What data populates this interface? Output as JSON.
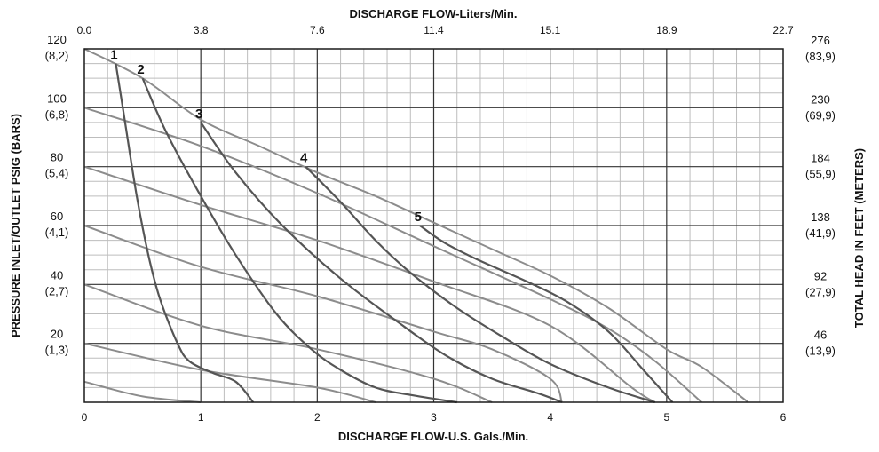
{
  "chart_data": {
    "type": "line",
    "title": "",
    "x_label_bottom": "DISCHARGE FLOW-U.S. Gals./Min.",
    "x_label_top": "DISCHARGE FLOW-Liters/Min.",
    "y_label_left": "PRESSURE INLET/OUTLET PSIG (BARS)",
    "y_label_right": "TOTAL HEAD IN FEET (METERS)",
    "xlim": [
      0,
      6
    ],
    "ylim": [
      0,
      120
    ],
    "grid": true,
    "bottom_ticks": [
      "0",
      "1",
      "2",
      "3",
      "4",
      "5",
      "6"
    ],
    "top_ticks": [
      "0.0",
      "3.8",
      "7.6",
      "11.4",
      "15.1",
      "18.9",
      "22.7"
    ],
    "left_ticks": [
      {
        "value": 120,
        "psi": "120",
        "bar": "(8,2)"
      },
      {
        "value": 100,
        "psi": "100",
        "bar": "(6,8)"
      },
      {
        "value": 80,
        "psi": "80",
        "bar": "(5,4)"
      },
      {
        "value": 60,
        "psi": "60",
        "bar": "(4,1)"
      },
      {
        "value": 40,
        "psi": "40",
        "bar": "(2,7)"
      },
      {
        "value": 20,
        "psi": "20",
        "bar": "(1,3)"
      }
    ],
    "right_ticks": [
      {
        "value": 120,
        "feet": "276",
        "meters": "(83,9)"
      },
      {
        "value": 100,
        "feet": "230",
        "meters": "(69,9)"
      },
      {
        "value": 80,
        "feet": "184",
        "meters": "(55,9)"
      },
      {
        "value": 60,
        "feet": "138",
        "meters": "(41,9)"
      },
      {
        "value": 40,
        "feet": "92",
        "meters": "(27,9)"
      },
      {
        "value": 20,
        "feet": "46",
        "meters": "(13,9)"
      }
    ],
    "performance_curves": [
      {
        "label": "1",
        "points": [
          [
            0.27,
            115
          ],
          [
            0.35,
            95
          ],
          [
            0.45,
            70
          ],
          [
            0.55,
            50
          ],
          [
            0.65,
            35
          ],
          [
            0.8,
            20
          ],
          [
            0.9,
            14
          ],
          [
            1.1,
            10
          ],
          [
            1.3,
            7
          ],
          [
            1.45,
            0
          ]
        ]
      },
      {
        "label": "2",
        "points": [
          [
            0.5,
            110
          ],
          [
            0.7,
            92
          ],
          [
            1.0,
            70
          ],
          [
            1.3,
            50
          ],
          [
            1.65,
            30
          ],
          [
            1.95,
            18
          ],
          [
            2.2,
            11
          ],
          [
            2.5,
            5
          ],
          [
            2.8,
            2.5
          ],
          [
            3.2,
            0
          ]
        ]
      },
      {
        "label": "3",
        "points": [
          [
            1.0,
            95
          ],
          [
            1.3,
            78
          ],
          [
            1.7,
            60
          ],
          [
            2.2,
            42
          ],
          [
            2.7,
            27
          ],
          [
            3.1,
            16
          ],
          [
            3.5,
            8
          ],
          [
            3.9,
            3
          ],
          [
            4.1,
            0
          ]
        ]
      },
      {
        "label": "4",
        "points": [
          [
            1.9,
            80
          ],
          [
            2.2,
            68
          ],
          [
            2.5,
            55
          ],
          [
            2.8,
            44
          ],
          [
            3.2,
            32
          ],
          [
            3.6,
            22
          ],
          [
            4.0,
            13
          ],
          [
            4.5,
            5
          ],
          [
            4.9,
            0
          ]
        ]
      },
      {
        "label": "5",
        "points": [
          [
            2.88,
            60
          ],
          [
            3.1,
            54
          ],
          [
            3.4,
            48
          ],
          [
            3.8,
            41
          ],
          [
            4.15,
            34
          ],
          [
            4.5,
            24
          ],
          [
            4.8,
            11
          ],
          [
            5.05,
            0
          ]
        ]
      }
    ],
    "air_consumption_lines": [
      {
        "points": [
          [
            0,
            120
          ],
          [
            0.5,
            110
          ],
          [
            1.0,
            96
          ],
          [
            1.5,
            87
          ],
          [
            2.0,
            78
          ],
          [
            2.5,
            70
          ],
          [
            3.0,
            61
          ],
          [
            3.5,
            52
          ],
          [
            4.0,
            43
          ],
          [
            4.5,
            32
          ],
          [
            5.0,
            18
          ],
          [
            5.3,
            12
          ],
          [
            5.7,
            0
          ]
        ]
      },
      {
        "points": [
          [
            0,
            100
          ],
          [
            1.0,
            87
          ],
          [
            2.0,
            71
          ],
          [
            3.0,
            53
          ],
          [
            4.0,
            35
          ],
          [
            4.5,
            25
          ],
          [
            4.9,
            14
          ],
          [
            5.3,
            0
          ]
        ]
      },
      {
        "points": [
          [
            0,
            80
          ],
          [
            1.0,
            67
          ],
          [
            2.0,
            55
          ],
          [
            3.0,
            41
          ],
          [
            4.0,
            26
          ],
          [
            4.7,
            5
          ],
          [
            4.9,
            0
          ]
        ]
      },
      {
        "points": [
          [
            0,
            60
          ],
          [
            1.0,
            46
          ],
          [
            2.0,
            36
          ],
          [
            3.0,
            24
          ],
          [
            3.5,
            18
          ],
          [
            4.0,
            8
          ],
          [
            4.1,
            0
          ]
        ]
      },
      {
        "points": [
          [
            0,
            40
          ],
          [
            1.0,
            26
          ],
          [
            2.0,
            18
          ],
          [
            3.0,
            8
          ],
          [
            3.5,
            0
          ]
        ]
      },
      {
        "points": [
          [
            0,
            20
          ],
          [
            1.0,
            11
          ],
          [
            2.0,
            5
          ],
          [
            2.5,
            0
          ]
        ]
      },
      {
        "points": [
          [
            0,
            7
          ],
          [
            0.5,
            2
          ],
          [
            1.0,
            0
          ]
        ]
      }
    ],
    "colors": {
      "axis": "#1a1a1a",
      "grid_major": "#333333",
      "grid_minor": "#bdbdbd",
      "curve": "#555555",
      "air_line": "#8c8c8c"
    }
  }
}
